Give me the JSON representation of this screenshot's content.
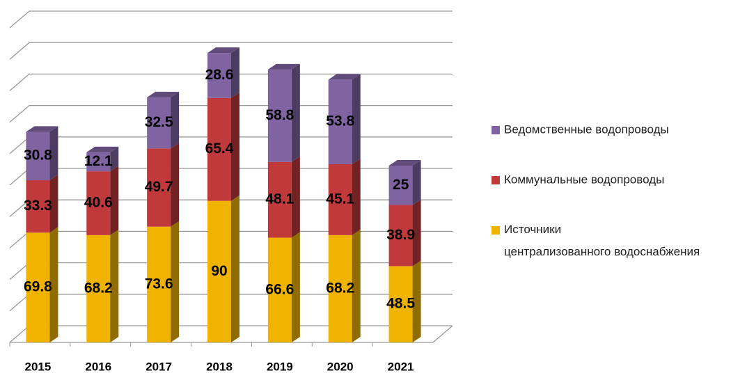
{
  "chart_data": {
    "type": "bar",
    "stacked": true,
    "categories": [
      "2015",
      "2016",
      "2017",
      "2018",
      "2019",
      "2020",
      "2021"
    ],
    "series": [
      {
        "name": "Источники централизованного водоснабжения",
        "color": "#f0b400",
        "values": [
          69.8,
          68.2,
          73.6,
          90,
          66.6,
          68.2,
          48.5
        ]
      },
      {
        "name": "Коммунальные водопроводы",
        "color": "#c0393b",
        "values": [
          33.3,
          40.6,
          49.7,
          65.4,
          48.1,
          45.1,
          38.9
        ]
      },
      {
        "name": "Ведомственные водопроводы",
        "color": "#8064a2",
        "values": [
          30.8,
          12.1,
          32.5,
          28.6,
          58.8,
          53.8,
          25
        ]
      }
    ],
    "ylim": [
      0,
      200
    ],
    "yticks": [
      0,
      20,
      40,
      60,
      80,
      100,
      120,
      140,
      160,
      180,
      200
    ],
    "grid": true,
    "legend": "right"
  }
}
